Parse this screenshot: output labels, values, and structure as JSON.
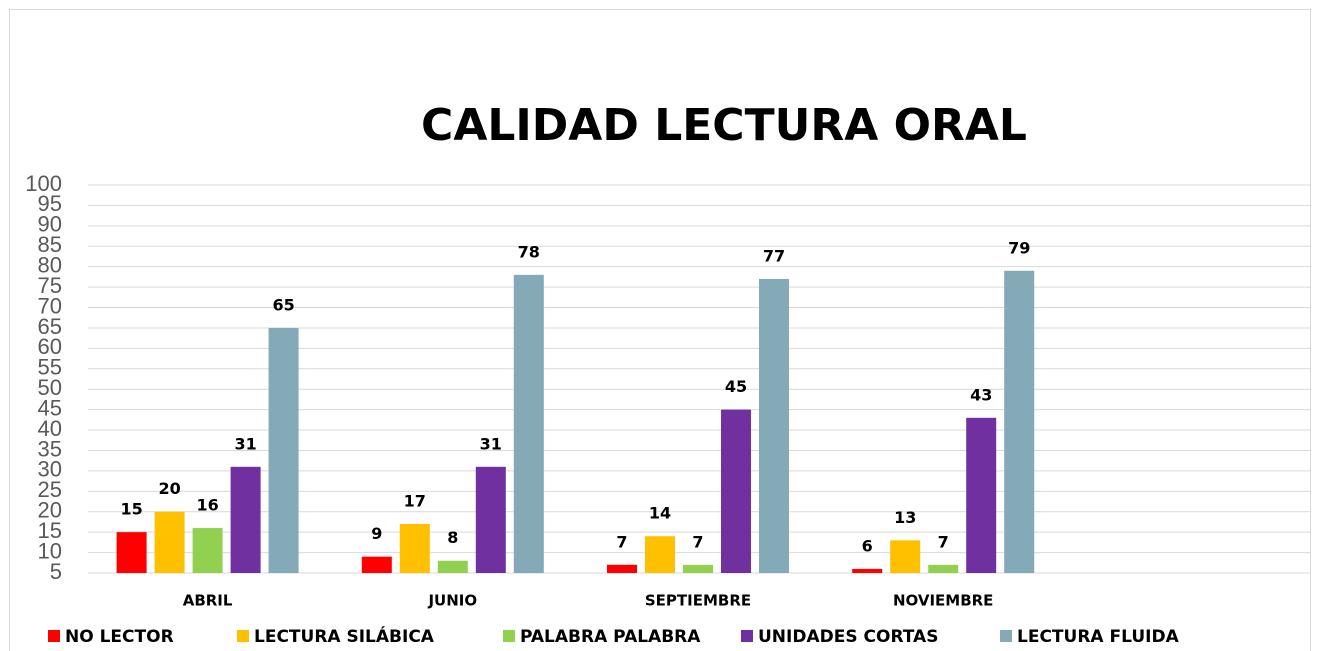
{
  "chart_data": {
    "type": "bar",
    "title": "CALIDAD LECTURA ORAL",
    "categories": [
      "ABRIL",
      "JUNIO",
      "SEPTIEMBRE",
      "NOVIEMBRE",
      null
    ],
    "series": [
      {
        "name": "NO LECTOR",
        "color": "#ff0000",
        "values": [
          15,
          9,
          7,
          6,
          null
        ]
      },
      {
        "name": "LECTURA SILÁBICA",
        "color": "#ffc000",
        "values": [
          20,
          17,
          14,
          13,
          null
        ]
      },
      {
        "name": "PALABRA PALABRA",
        "color": "#92d050",
        "values": [
          16,
          8,
          7,
          7,
          null
        ]
      },
      {
        "name": "UNIDADES CORTAS",
        "color": "#7030a0",
        "values": [
          31,
          31,
          45,
          43,
          null
        ]
      },
      {
        "name": "LECTURA FLUIDA",
        "color": "#84aab8",
        "values": [
          65,
          78,
          77,
          79,
          null
        ]
      }
    ],
    "ylim": [
      5,
      100
    ],
    "yticks": [
      5,
      10,
      15,
      20,
      25,
      30,
      35,
      40,
      45,
      50,
      55,
      60,
      65,
      70,
      75,
      80,
      85,
      90,
      95,
      100
    ],
    "grid": true,
    "legend": "bottom"
  }
}
